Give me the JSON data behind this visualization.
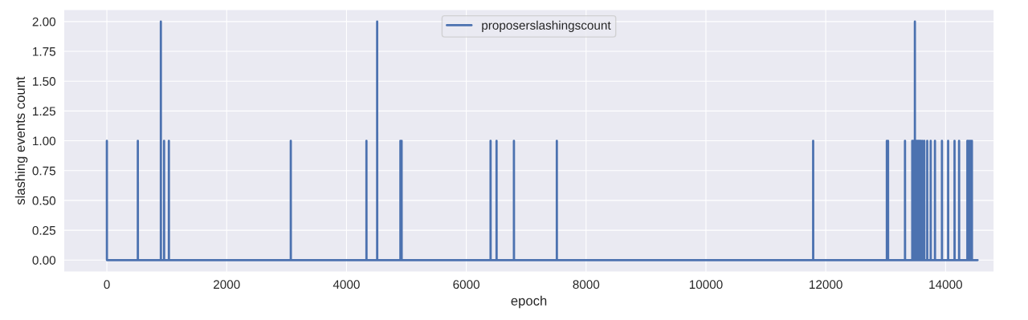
{
  "chart_data": {
    "type": "line",
    "xlabel": "epoch",
    "ylabel": "slashing events count",
    "legend": "top center",
    "grid": true,
    "line_style": "solid",
    "marker": "none",
    "xlim": [
      -720,
      14810
    ],
    "xticks": [
      0,
      2000,
      4000,
      6000,
      8000,
      10000,
      12000,
      14000
    ],
    "ylim": [
      -0.1,
      2.1
    ],
    "yticks": [
      {
        "value": 0,
        "label": "0.00"
      },
      {
        "value": 0.25,
        "label": "0.25"
      },
      {
        "value": 0.5,
        "label": "0.50"
      },
      {
        "value": 0.75,
        "label": "0.75"
      },
      {
        "value": 1,
        "label": "1.00"
      },
      {
        "value": 1.25,
        "label": "1.25"
      },
      {
        "value": 1.5,
        "label": "1.50"
      },
      {
        "value": 1.75,
        "label": "1.75"
      },
      {
        "value": 2,
        "label": "2.00"
      }
    ],
    "series": [
      {
        "name": "proposerslashingscount",
        "color": "#4c72b0",
        "x": [
          0,
          1,
          517,
          517,
          518,
          901,
          901,
          902,
          955,
          955,
          956,
          1035,
          1035,
          1036,
          3070,
          3070,
          3071,
          4333,
          4333,
          4334,
          4512,
          4512,
          4513,
          4900,
          4900,
          4901,
          4920,
          4920,
          4921,
          6405,
          6405,
          6406,
          6505,
          6505,
          6506,
          6795,
          6795,
          6796,
          7511,
          7511,
          7512,
          11790,
          11790,
          11791,
          13020,
          13020,
          13021,
          13040,
          13040,
          13041,
          13323,
          13323,
          13324,
          13444,
          13444,
          13445,
          13460,
          13460,
          13461,
          13475,
          13475,
          13476,
          13488,
          13488,
          13489,
          13500,
          13500,
          13501,
          13515,
          13515,
          13516,
          13530,
          13530,
          13531,
          13545,
          13545,
          13546,
          13560,
          13560,
          13561,
          13575,
          13575,
          13576,
          13590,
          13590,
          13591,
          13613,
          13613,
          13614,
          13645,
          13645,
          13646,
          13694,
          13694,
          13695,
          13752,
          13752,
          13753,
          13823,
          13823,
          13824,
          13940,
          13940,
          13941,
          14043,
          14043,
          14044,
          14150,
          14150,
          14151,
          14226,
          14226,
          14227,
          14364,
          14364,
          14365,
          14380,
          14380,
          14381,
          14400,
          14400,
          14401,
          14420,
          14420,
          14421,
          14440,
          14440,
          14441,
          14535
        ],
        "values": [
          1,
          0,
          0,
          1,
          0,
          0,
          2,
          0,
          0,
          1,
          0,
          0,
          1,
          0,
          0,
          1,
          0,
          0,
          1,
          0,
          0,
          2,
          0,
          0,
          1,
          0,
          0,
          1,
          0,
          0,
          1,
          0,
          0,
          1,
          0,
          0,
          1,
          0,
          0,
          1,
          0,
          0,
          1,
          0,
          0,
          1,
          0,
          0,
          1,
          0,
          0,
          1,
          0,
          0,
          1,
          0,
          0,
          1,
          0,
          0,
          1,
          0,
          0,
          2,
          0,
          0,
          1,
          0,
          0,
          1,
          0,
          0,
          1,
          0,
          0,
          1,
          0,
          0,
          1,
          0,
          0,
          1,
          0,
          0,
          1,
          0,
          0,
          1,
          0,
          0,
          1,
          0,
          0,
          1,
          0,
          0,
          1,
          0,
          0,
          1,
          0,
          0,
          1,
          0,
          0,
          1,
          0,
          0,
          1,
          0,
          0,
          1,
          0,
          0,
          1,
          0,
          0,
          1,
          0,
          0,
          1,
          0,
          0,
          1,
          0,
          0,
          1,
          0,
          0
        ]
      }
    ]
  }
}
